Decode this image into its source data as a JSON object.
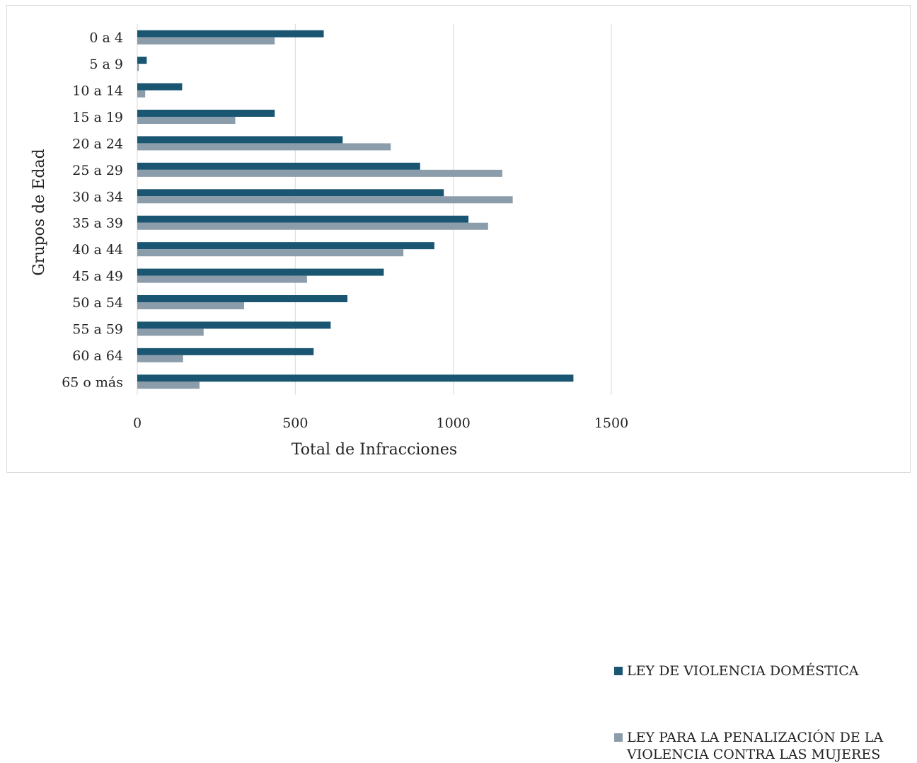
{
  "chart_data": {
    "type": "bar",
    "orientation": "horizontal",
    "categories": [
      "0 a 4",
      "5 a 9",
      "10 a 14",
      "15 a 19",
      "20 a 24",
      "25 a 29",
      "30 a 34",
      "35 a 39",
      "40 a 44",
      "45 a 49",
      "50 a 54",
      "55 a 59",
      "60 a 64",
      "65 o más"
    ],
    "series": [
      {
        "name": "LEY DE VIOLENCIA DOMÉSTICA",
        "color": "#1a5572",
        "values": [
          590,
          30,
          142,
          435,
          650,
          895,
          970,
          1048,
          940,
          780,
          665,
          612,
          558,
          1380
        ]
      },
      {
        "name": "LEY PARA LA PENALIZACIÓN DE LA VIOLENCIA CONTRA LAS MUJERES",
        "color": "#8b9dab",
        "values": [
          435,
          5,
          25,
          310,
          802,
          1155,
          1188,
          1110,
          842,
          537,
          338,
          210,
          145,
          197
        ]
      }
    ],
    "xlabel": "Total de Infracciones",
    "ylabel": "Grupos de Edad",
    "xlim": [
      0,
      1500
    ],
    "xticks": [
      0,
      500,
      1000,
      1500
    ],
    "grid": true,
    "legend_position": "right"
  }
}
